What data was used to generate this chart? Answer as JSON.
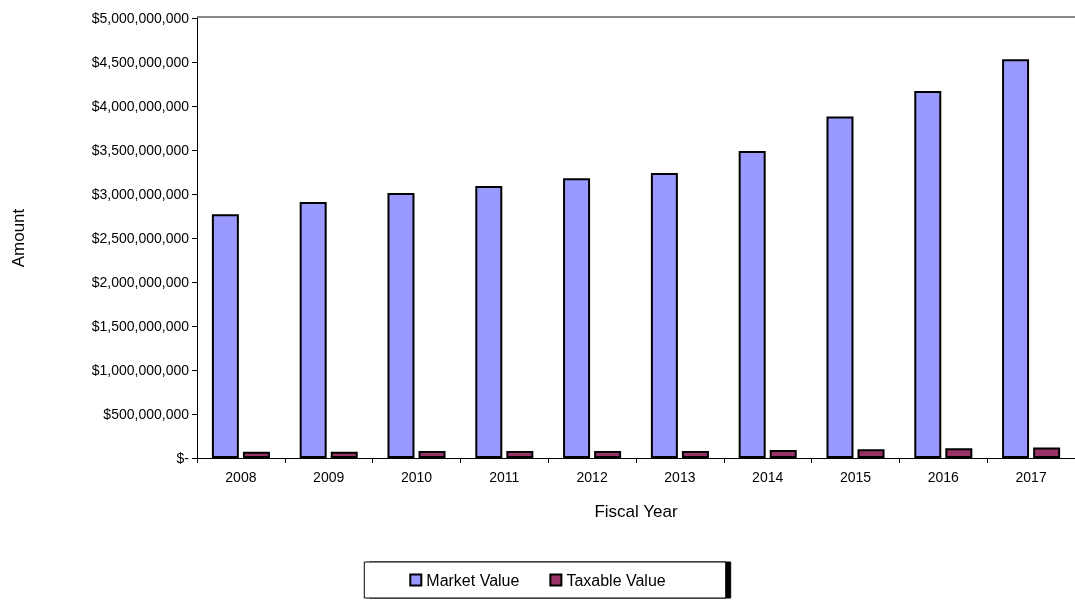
{
  "chart_data": {
    "type": "bar",
    "xlabel": "Fiscal Year",
    "ylabel": "Amount",
    "categories": [
      "2008",
      "2009",
      "2010",
      "2011",
      "2012",
      "2013",
      "2014",
      "2015",
      "2016",
      "2017"
    ],
    "series": [
      {
        "name": "Market Value",
        "color": "#9999ff",
        "values": [
          2770000000,
          2910000000,
          3010000000,
          3090000000,
          3180000000,
          3240000000,
          3490000000,
          3880000000,
          4170000000,
          4530000000
        ]
      },
      {
        "name": "Taxable Value",
        "color": "#993366",
        "values": [
          70000000,
          70000000,
          80000000,
          80000000,
          80000000,
          80000000,
          90000000,
          100000000,
          110000000,
          120000000
        ]
      }
    ],
    "ylim": [
      0,
      5000000000
    ],
    "yticks": [
      {
        "value": 0,
        "label": "$-"
      },
      {
        "value": 500000000,
        "label": "$500,000,000"
      },
      {
        "value": 1000000000,
        "label": "$1,000,000,000"
      },
      {
        "value": 1500000000,
        "label": "$1,500,000,000"
      },
      {
        "value": 2000000000,
        "label": "$2,000,000,000"
      },
      {
        "value": 2500000000,
        "label": "$2,500,000,000"
      },
      {
        "value": 3000000000,
        "label": "$3,000,000,000"
      },
      {
        "value": 3500000000,
        "label": "$3,500,000,000"
      },
      {
        "value": 4000000000,
        "label": "$4,000,000,000"
      },
      {
        "value": 4500000000,
        "label": "$4,500,000,000"
      },
      {
        "value": 5000000000,
        "label": "$5,000,000,000"
      }
    ],
    "grid": false,
    "legend": "bottom"
  }
}
